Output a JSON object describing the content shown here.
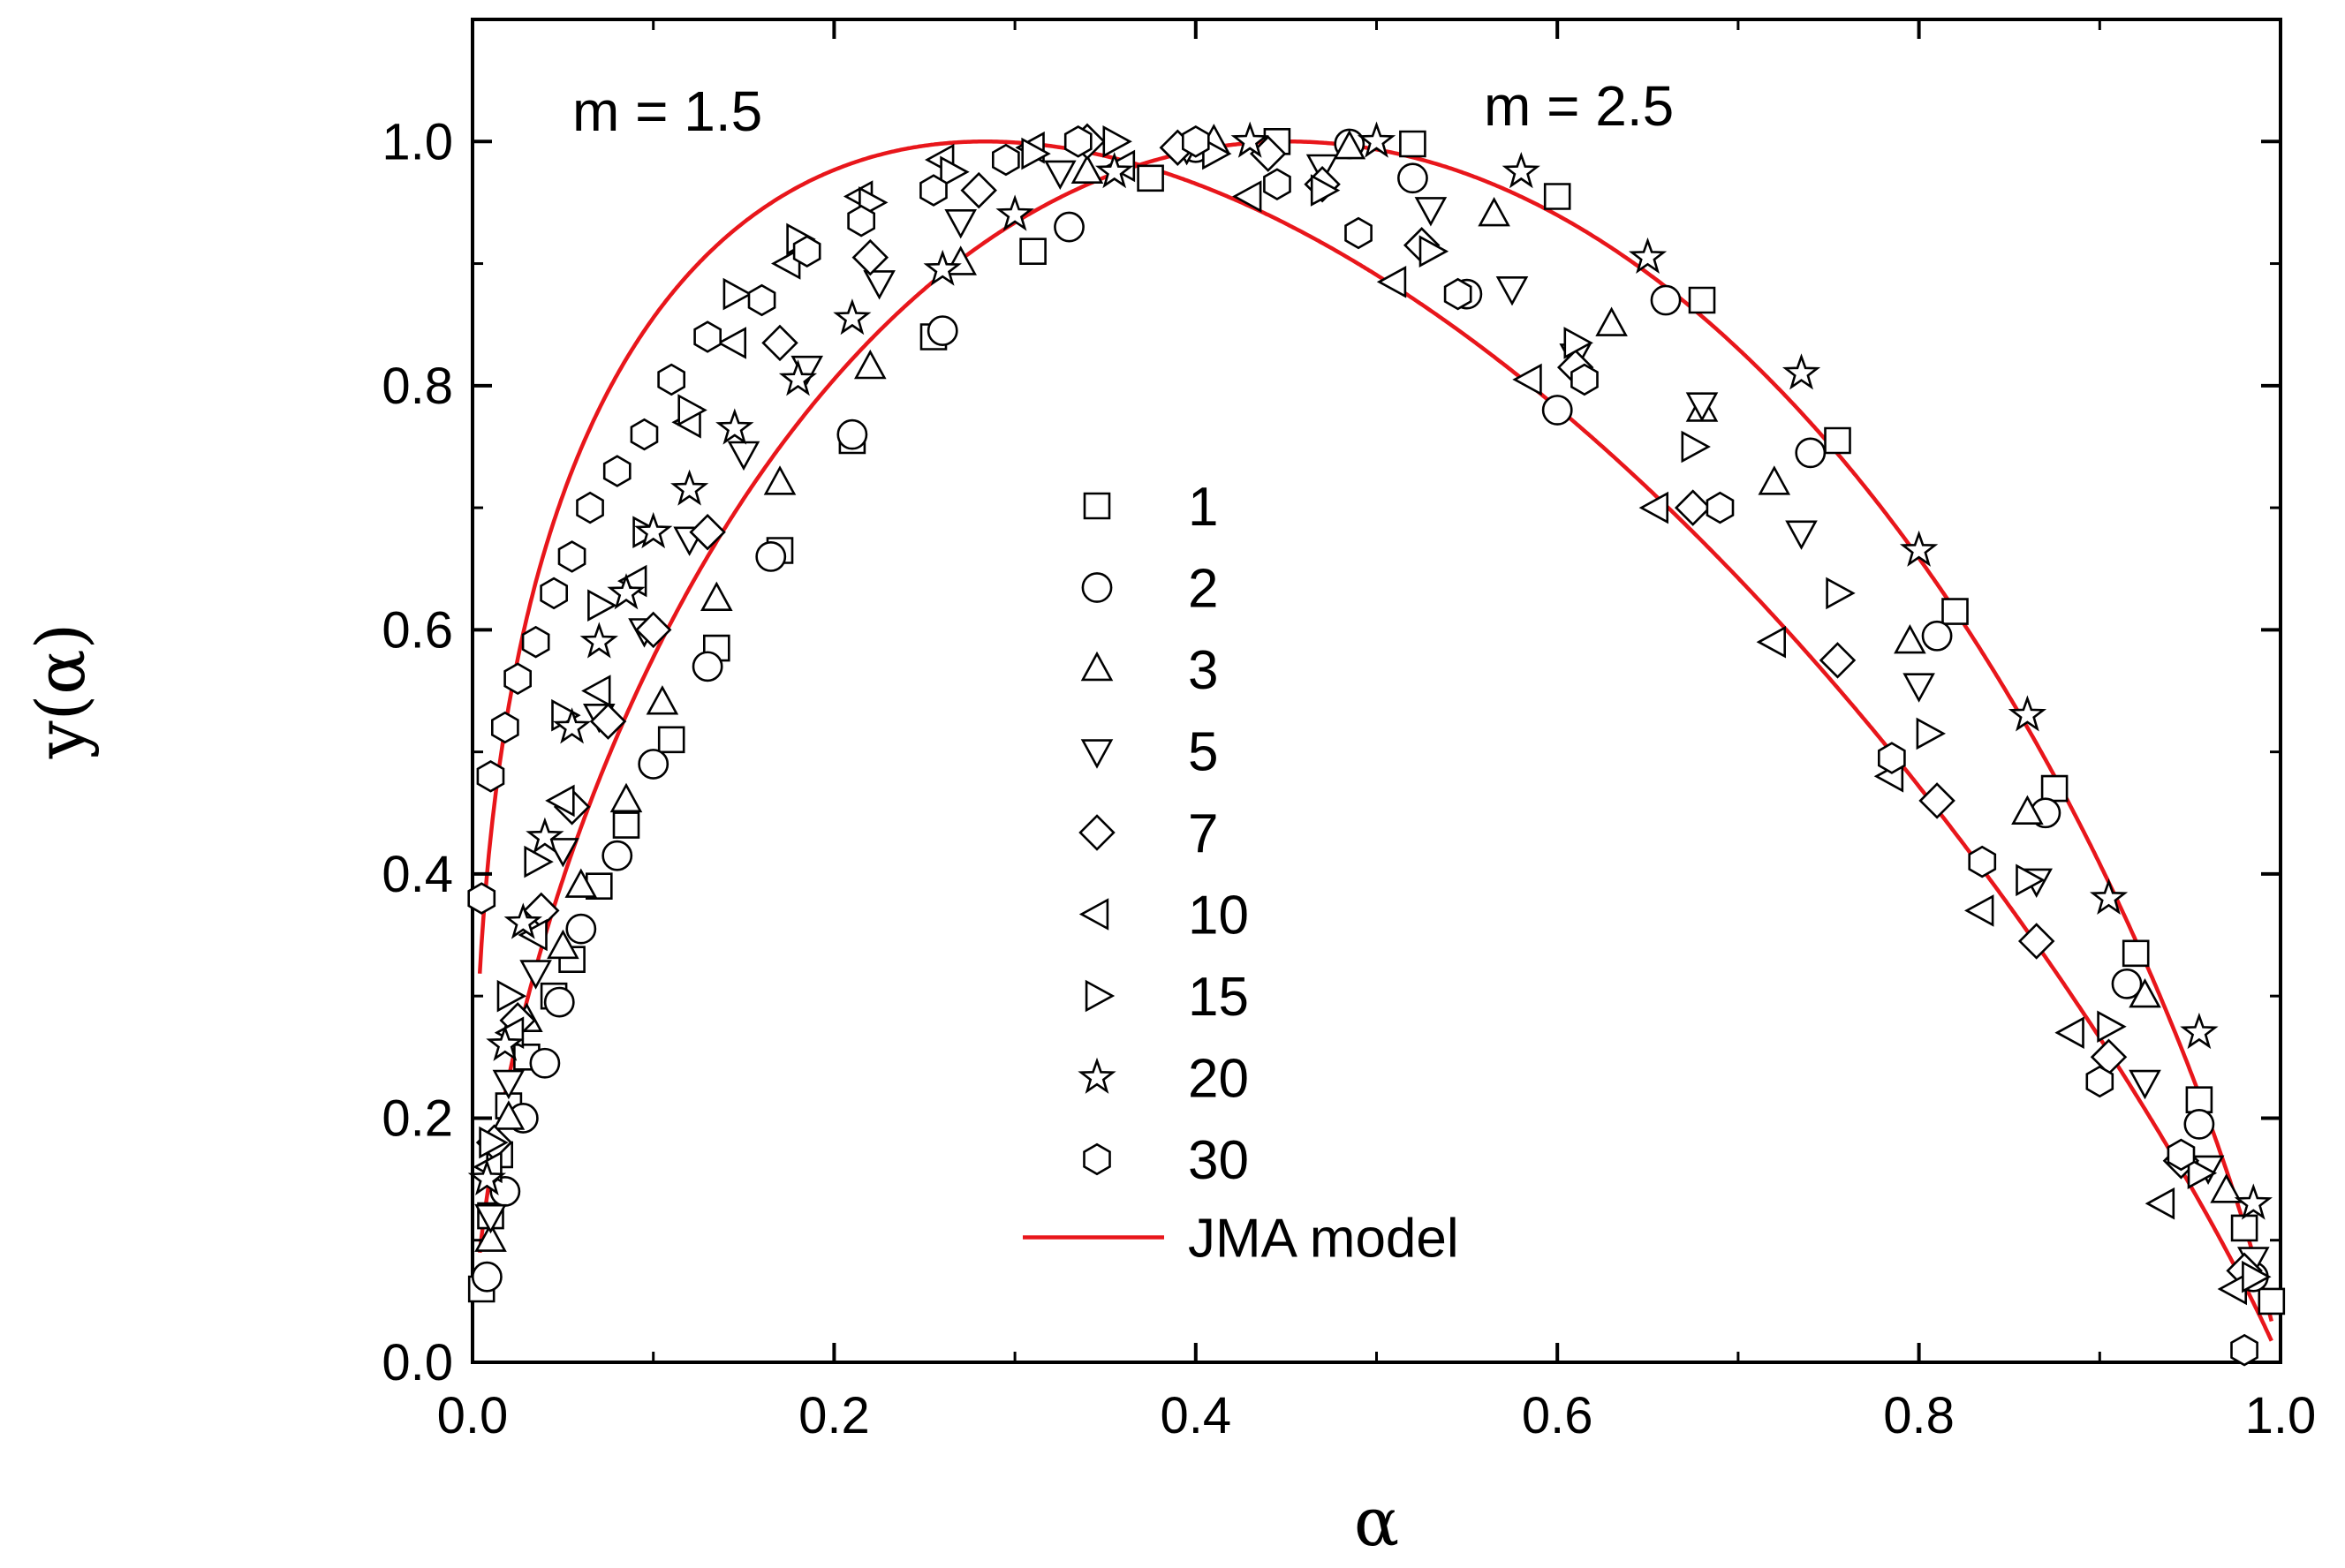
{
  "chart_data": {
    "type": "scatter",
    "title": "",
    "xlabel": "α",
    "ylabel": "y(α)",
    "xlim": [
      0.0,
      1.0
    ],
    "ylim": [
      0.0,
      1.1
    ],
    "x_ticks": [
      "0.0",
      "0.2",
      "0.4",
      "0.6",
      "0.8",
      "1.0"
    ],
    "y_ticks": [
      "0.0",
      "0.2",
      "0.4",
      "0.6",
      "0.8",
      "1.0"
    ],
    "annotations": [
      "m = 1.5",
      "m = 2.5"
    ],
    "legend": {
      "position": "center",
      "entries": [
        "1",
        "2",
        "3",
        "5",
        "7",
        "10",
        "15",
        "20",
        "30",
        "JMA model"
      ]
    },
    "series": [
      {
        "name": "1",
        "marker": "square",
        "x": [
          0.005,
          0.01,
          0.015,
          0.02,
          0.03,
          0.045,
          0.055,
          0.07,
          0.085,
          0.11,
          0.135,
          0.17,
          0.21,
          0.255,
          0.31,
          0.375,
          0.445,
          0.52,
          0.6,
          0.68,
          0.755,
          0.82,
          0.875,
          0.92,
          0.955,
          0.98,
          0.995
        ],
        "y": [
          0.06,
          0.12,
          0.17,
          0.21,
          0.25,
          0.3,
          0.33,
          0.39,
          0.44,
          0.51,
          0.585,
          0.665,
          0.755,
          0.84,
          0.91,
          0.97,
          1.0,
          0.998,
          0.955,
          0.87,
          0.755,
          0.615,
          0.47,
          0.335,
          0.215,
          0.11,
          0.05
        ]
      },
      {
        "name": "2",
        "marker": "circle",
        "x": [
          0.008,
          0.018,
          0.028,
          0.04,
          0.048,
          0.06,
          0.08,
          0.1,
          0.13,
          0.165,
          0.21,
          0.26,
          0.33,
          0.4,
          0.485,
          0.52,
          0.55,
          0.6,
          0.66,
          0.74,
          0.81,
          0.87,
          0.915,
          0.955,
          0.985
        ],
        "y": [
          0.07,
          0.14,
          0.2,
          0.245,
          0.295,
          0.355,
          0.415,
          0.49,
          0.57,
          0.66,
          0.76,
          0.845,
          0.93,
          0.995,
          0.998,
          0.97,
          0.875,
          0.78,
          0.87,
          0.745,
          0.595,
          0.45,
          0.31,
          0.195,
          0.07
        ]
      },
      {
        "name": "3",
        "marker": "triangle-up",
        "x": [
          0.01,
          0.02,
          0.03,
          0.05,
          0.06,
          0.085,
          0.105,
          0.135,
          0.17,
          0.22,
          0.27,
          0.34,
          0.41,
          0.485,
          0.565,
          0.63,
          0.68,
          0.72,
          0.795,
          0.86,
          0.925,
          0.97
        ],
        "y": [
          0.1,
          0.2,
          0.28,
          0.34,
          0.39,
          0.46,
          0.54,
          0.625,
          0.72,
          0.815,
          0.9,
          0.975,
          1.0,
          0.995,
          0.94,
          0.85,
          0.78,
          0.72,
          0.59,
          0.45,
          0.3,
          0.14
        ]
      },
      {
        "name": "5",
        "marker": "triangle-down",
        "x": [
          0.01,
          0.02,
          0.035,
          0.05,
          0.07,
          0.095,
          0.12,
          0.15,
          0.185,
          0.225,
          0.27,
          0.325,
          0.395,
          0.47,
          0.53,
          0.575,
          0.61,
          0.68,
          0.735,
          0.8,
          0.865,
          0.925,
          0.96,
          0.985
        ],
        "y": [
          0.12,
          0.23,
          0.32,
          0.42,
          0.53,
          0.6,
          0.675,
          0.745,
          0.815,
          0.885,
          0.935,
          0.975,
          0.995,
          0.98,
          0.945,
          0.88,
          0.825,
          0.785,
          0.68,
          0.555,
          0.395,
          0.23,
          0.16,
          0.085
        ]
      },
      {
        "name": "7",
        "marker": "diamond",
        "x": [
          0.012,
          0.025,
          0.038,
          0.055,
          0.075,
          0.1,
          0.13,
          0.17,
          0.22,
          0.28,
          0.34,
          0.39,
          0.44,
          0.47,
          0.525,
          0.61,
          0.675,
          0.755,
          0.81,
          0.865,
          0.905,
          0.945,
          0.98
        ],
        "y": [
          0.18,
          0.28,
          0.37,
          0.455,
          0.525,
          0.6,
          0.68,
          0.835,
          0.905,
          0.96,
          1.0,
          0.995,
          0.99,
          0.965,
          0.915,
          0.815,
          0.7,
          0.575,
          0.46,
          0.345,
          0.25,
          0.165,
          0.075
        ]
      },
      {
        "name": "10",
        "marker": "triangle-left",
        "x": [
          0.01,
          0.022,
          0.035,
          0.05,
          0.07,
          0.09,
          0.12,
          0.145,
          0.175,
          0.215,
          0.26,
          0.31,
          0.36,
          0.43,
          0.51,
          0.585,
          0.655,
          0.72,
          0.785,
          0.835,
          0.885,
          0.935,
          0.975
        ],
        "y": [
          0.16,
          0.27,
          0.35,
          0.46,
          0.55,
          0.64,
          0.77,
          0.835,
          0.9,
          0.955,
          0.985,
          0.995,
          0.98,
          0.955,
          0.885,
          0.805,
          0.7,
          0.59,
          0.48,
          0.37,
          0.27,
          0.13,
          0.06
        ]
      },
      {
        "name": "15",
        "marker": "triangle-right",
        "x": [
          0.01,
          0.02,
          0.035,
          0.05,
          0.07,
          0.095,
          0.12,
          0.145,
          0.18,
          0.22,
          0.265,
          0.31,
          0.355,
          0.41,
          0.47,
          0.53,
          0.61,
          0.675,
          0.755,
          0.805,
          0.86,
          0.905,
          0.955,
          0.985
        ],
        "y": [
          0.18,
          0.3,
          0.41,
          0.53,
          0.62,
          0.68,
          0.78,
          0.875,
          0.92,
          0.95,
          0.975,
          0.99,
          1.0,
          0.99,
          0.96,
          0.91,
          0.835,
          0.75,
          0.63,
          0.515,
          0.395,
          0.275,
          0.155,
          0.07
        ]
      },
      {
        "name": "20",
        "marker": "star",
        "x": [
          0.008,
          0.018,
          0.028,
          0.04,
          0.055,
          0.07,
          0.085,
          0.1,
          0.12,
          0.145,
          0.18,
          0.21,
          0.26,
          0.3,
          0.355,
          0.43,
          0.5,
          0.58,
          0.65,
          0.735,
          0.8,
          0.86,
          0.905,
          0.955,
          0.985
        ],
        "y": [
          0.15,
          0.26,
          0.36,
          0.43,
          0.52,
          0.59,
          0.63,
          0.68,
          0.715,
          0.765,
          0.805,
          0.855,
          0.895,
          0.94,
          0.975,
          1.0,
          1.0,
          0.975,
          0.905,
          0.81,
          0.665,
          0.53,
          0.38,
          0.27,
          0.13
        ]
      },
      {
        "name": "30",
        "marker": "hexagon",
        "x": [
          0.005,
          0.01,
          0.018,
          0.025,
          0.035,
          0.045,
          0.055,
          0.065,
          0.08,
          0.095,
          0.11,
          0.13,
          0.16,
          0.185,
          0.215,
          0.255,
          0.295,
          0.335,
          0.4,
          0.445,
          0.49,
          0.545,
          0.615,
          0.69,
          0.785,
          0.835,
          0.9,
          0.945,
          0.98
        ],
        "y": [
          0.38,
          0.48,
          0.52,
          0.56,
          0.59,
          0.63,
          0.66,
          0.7,
          0.73,
          0.76,
          0.805,
          0.84,
          0.87,
          0.91,
          0.935,
          0.96,
          0.985,
          1.0,
          1.0,
          0.965,
          0.925,
          0.875,
          0.805,
          0.7,
          0.495,
          0.41,
          0.23,
          0.17,
          0.01
        ]
      }
    ],
    "model_curves": [
      {
        "name": "JMA model",
        "m": 1.5,
        "peak_alpha": 0.28,
        "peak_y": 1.0
      },
      {
        "name": "JMA model",
        "m": 2.5,
        "peak_alpha": 0.45,
        "peak_y": 1.0
      }
    ],
    "line_color": "#e8161b",
    "marker_color": "#000000"
  }
}
